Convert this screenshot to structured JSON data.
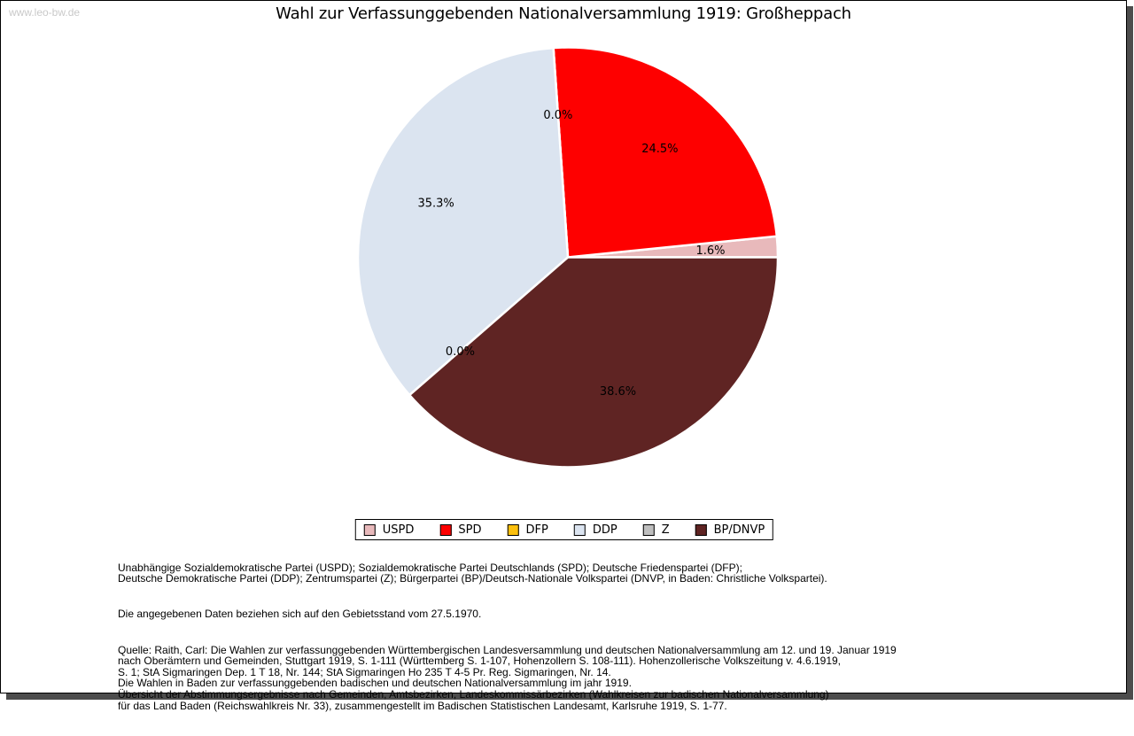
{
  "watermark": "www.leo-bw.de",
  "title": "Wahl zur Verfassunggebenden Nationalversammlung 1919: Großheppach",
  "chart_data": {
    "type": "pie",
    "title": "Wahl zur Verfassunggebenden Nationalversammlung 1919: Großheppach",
    "categories": [
      "USPD",
      "SPD",
      "DFP",
      "DDP",
      "Z",
      "BP/DNVP"
    ],
    "values": [
      1.6,
      24.5,
      0.0,
      35.3,
      0.0,
      38.6
    ],
    "labels": [
      "1.6%",
      "24.5%",
      "0.0%",
      "35.3%",
      "0.0%",
      "38.6%"
    ],
    "colors": [
      "#e8b9bb",
      "#fe0000",
      "#fcc00d",
      "#dbe4f0",
      "#bfbfbf",
      "#5f2423"
    ],
    "start_angle_deg": 0,
    "direction": "counterclockwise",
    "slice_border_color": "#ffffff",
    "label_radius_fraction": 0.68,
    "legend_position": "bottom"
  },
  "notes": {
    "parties": "Unabhängige Sozialdemokratische Partei (USPD); Sozialdemokratische Partei Deutschlands (SPD); Deutsche Friedenspartei (DFP);\nDeutsche Demokratische Partei (DDP); Zentrumspartei (Z); Bürgerpartei (BP)/Deutsch-Nationale Volkspartei (DNVP, in Baden: Christliche Volkspartei).",
    "territory": "Die angegebenen Daten beziehen sich auf den Gebietsstand vom 27.5.1970.",
    "source": "Quelle: Raith, Carl: Die Wahlen zur verfassunggebenden Württembergischen Landesversammlung und deutschen Nationalversammlung am 12. und 19. Januar 1919\nnach Oberämtern und Gemeinden, Stuttgart 1919, S. 1-111 (Württemberg S. 1-107, Hohenzollern S. 108-111). Hohenzollerische Volkszeitung v. 4.6.1919,\nS. 1; StA Sigmaringen Dep. 1 T 18, Nr. 144; StA Sigmaringen Ho 235 T 4-5 Pr. Reg. Sigmaringen, Nr. 14.\nDie Wahlen in Baden zur verfassunggebenden badischen und deutschen Nationalversammlung im jahr 1919.\nÜbersicht der Abstimmungsergebnisse nach Gemeinden, Amtsbezirken, Landeskommissärbezirken (Wahlkreisen zur badischen Nationalversammlung)\nfür das Land Baden (Reichswahlkreis Nr. 33), zusammengestellt im Badischen Statistischen Landesamt, Karlsruhe 1919, S. 1-77."
  }
}
